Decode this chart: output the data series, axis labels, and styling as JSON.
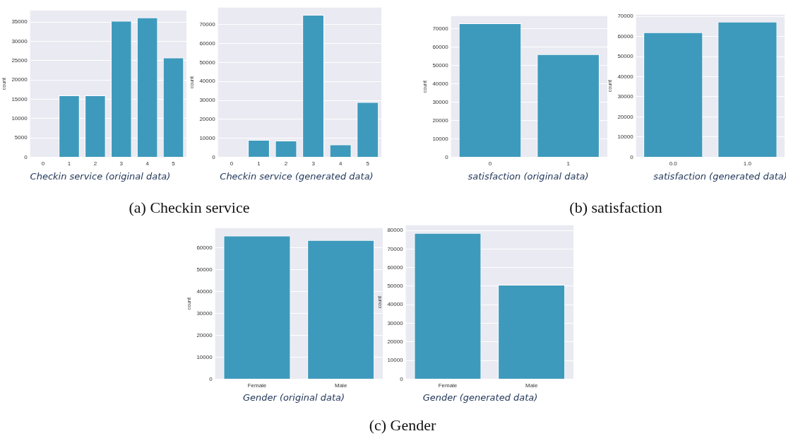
{
  "chart_data": [
    {
      "type": "bar",
      "xlabel": "Checkin service (original data)",
      "ylabel": "count",
      "categories": [
        "0",
        "1",
        "2",
        "3",
        "4",
        "5"
      ],
      "values": [
        0,
        16000,
        16000,
        35300,
        36200,
        25800
      ],
      "color": "#3e9abc",
      "ylim": [
        0,
        38000
      ],
      "yticks": [
        0,
        5000,
        10000,
        15000,
        20000,
        25000,
        30000,
        35000
      ],
      "grid": "y",
      "annotations": [
        "(a) Checkin service"
      ]
    },
    {
      "type": "bar",
      "xlabel": "Checkin service (generated data)",
      "ylabel": "count",
      "categories": [
        "0",
        "1",
        "2",
        "3",
        "4",
        "5"
      ],
      "values": [
        0,
        9100,
        8700,
        75200,
        6700,
        29100
      ],
      "color": "#3e9abc",
      "ylim": [
        0,
        79000
      ],
      "yticks": [
        0,
        10000,
        20000,
        30000,
        40000,
        50000,
        60000,
        70000
      ],
      "grid": "y"
    },
    {
      "type": "bar",
      "xlabel": "satisfaction (original data)",
      "ylabel": "count",
      "categories": [
        "0",
        "1"
      ],
      "values": [
        73100,
        56200
      ],
      "color": "#3e9abc",
      "ylim": [
        0,
        77000
      ],
      "yticks": [
        0,
        10000,
        20000,
        30000,
        40000,
        50000,
        60000,
        70000
      ],
      "grid": "y",
      "annotations": [
        "(b) satisfaction"
      ]
    },
    {
      "type": "bar",
      "xlabel": "satisfaction (generated data)",
      "ylabel": "count",
      "categories": [
        "0.0",
        "1.0"
      ],
      "values": [
        62000,
        67300
      ],
      "color": "#3e9abc",
      "ylim": [
        0,
        70800
      ],
      "yticks": [
        0,
        10000,
        20000,
        30000,
        40000,
        50000,
        60000,
        70000
      ],
      "grid": "y"
    },
    {
      "type": "bar",
      "xlabel": "Gender (original data)",
      "ylabel": "count",
      "categories": [
        "Female",
        "Male"
      ],
      "values": [
        65600,
        63600
      ],
      "color": "#3e9abc",
      "ylim": [
        0,
        69100
      ],
      "yticks": [
        0,
        10000,
        20000,
        30000,
        40000,
        50000,
        60000
      ],
      "grid": "y",
      "annotations": [
        "(c) Gender"
      ]
    },
    {
      "type": "bar",
      "xlabel": "Gender (generated data)",
      "ylabel": "count",
      "categories": [
        "Female",
        "Male"
      ],
      "values": [
        78600,
        50800
      ],
      "color": "#3e9abc",
      "ylim": [
        0,
        82800
      ],
      "yticks": [
        0,
        10000,
        20000,
        30000,
        40000,
        50000,
        60000,
        70000,
        80000
      ],
      "grid": "y"
    }
  ]
}
